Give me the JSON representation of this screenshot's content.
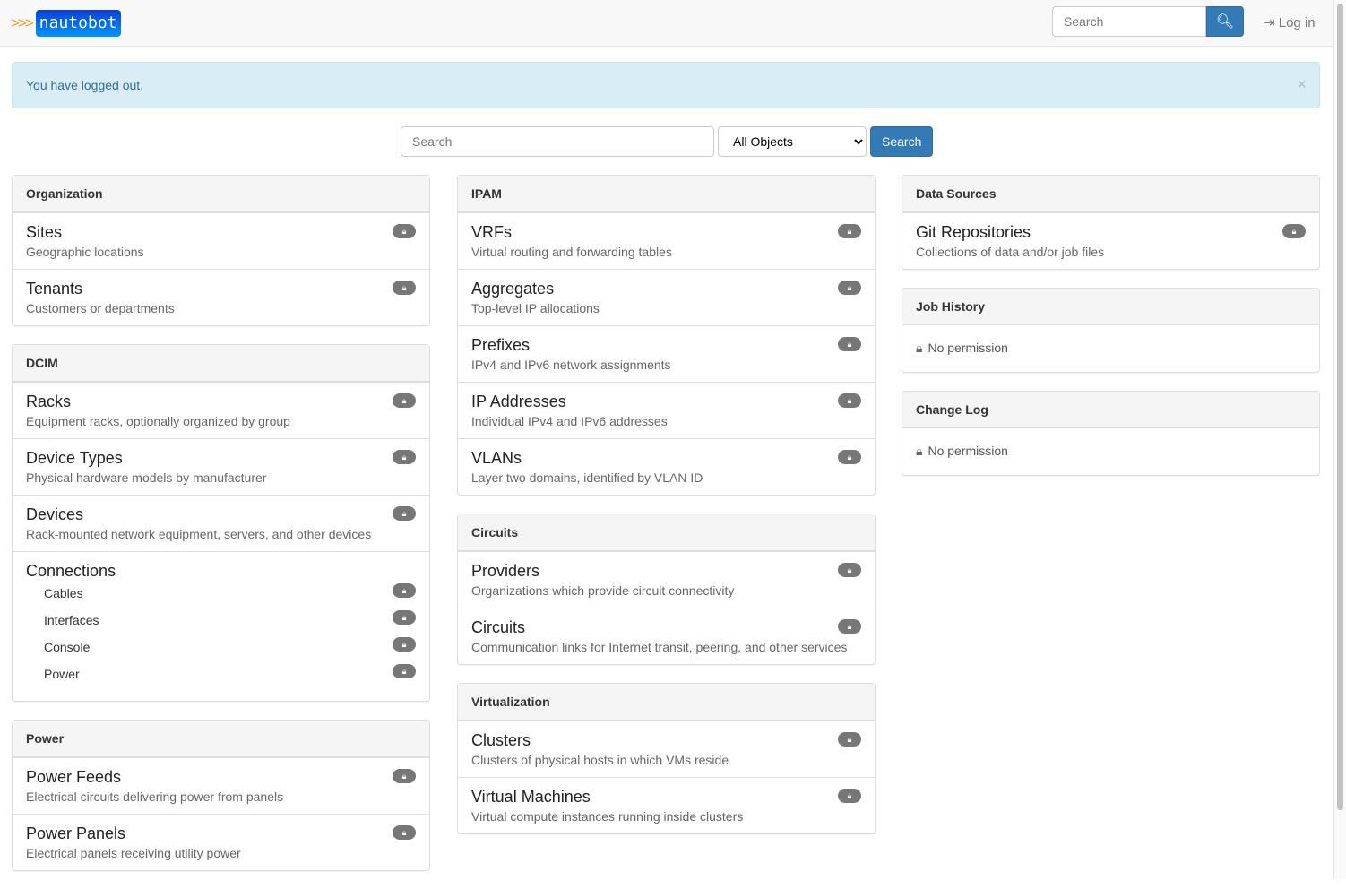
{
  "navbar": {
    "brand": "nautobot",
    "brand_chevrons": ">>>",
    "search_placeholder": "Search",
    "login_label": "Log in"
  },
  "alert": {
    "message": "You have logged out.",
    "close": "×"
  },
  "search": {
    "placeholder": "Search",
    "selected": "All Objects",
    "button": "Search"
  },
  "columns": [
    [
      {
        "title": "Organization",
        "items": [
          {
            "title": "Sites",
            "desc": "Geographic locations",
            "locked": true
          },
          {
            "title": "Tenants",
            "desc": "Customers or departments",
            "locked": true
          }
        ]
      },
      {
        "title": "DCIM",
        "items": [
          {
            "title": "Racks",
            "desc": "Equipment racks, optionally organized by group",
            "locked": true
          },
          {
            "title": "Device Types",
            "desc": "Physical hardware models by manufacturer",
            "locked": true
          },
          {
            "title": "Devices",
            "desc": "Rack-mounted network equipment, servers, and other devices",
            "locked": true
          },
          {
            "title": "Connections",
            "subitems": [
              {
                "label": "Cables",
                "locked": true
              },
              {
                "label": "Interfaces",
                "locked": true
              },
              {
                "label": "Console",
                "locked": true
              },
              {
                "label": "Power",
                "locked": true
              }
            ]
          }
        ]
      },
      {
        "title": "Power",
        "items": [
          {
            "title": "Power Feeds",
            "desc": "Electrical circuits delivering power from panels",
            "locked": true
          },
          {
            "title": "Power Panels",
            "desc": "Electrical panels receiving utility power",
            "locked": true
          }
        ]
      }
    ],
    [
      {
        "title": "IPAM",
        "items": [
          {
            "title": "VRFs",
            "desc": "Virtual routing and forwarding tables",
            "locked": true
          },
          {
            "title": "Aggregates",
            "desc": "Top-level IP allocations",
            "locked": true
          },
          {
            "title": "Prefixes",
            "desc": "IPv4 and IPv6 network assignments",
            "locked": true
          },
          {
            "title": "IP Addresses",
            "desc": "Individual IPv4 and IPv6 addresses",
            "locked": true
          },
          {
            "title": "VLANs",
            "desc": "Layer two domains, identified by VLAN ID",
            "locked": true
          }
        ]
      },
      {
        "title": "Circuits",
        "items": [
          {
            "title": "Providers",
            "desc": "Organizations which provide circuit connectivity",
            "locked": true
          },
          {
            "title": "Circuits",
            "desc": "Communication links for Internet transit, peering, and other services",
            "locked": true
          }
        ]
      },
      {
        "title": "Virtualization",
        "items": [
          {
            "title": "Clusters",
            "desc": "Clusters of physical hosts in which VMs reside",
            "locked": true
          },
          {
            "title": "Virtual Machines",
            "desc": "Virtual compute instances running inside clusters",
            "locked": true
          }
        ]
      }
    ],
    [
      {
        "title": "Data Sources",
        "items": [
          {
            "title": "Git Repositories",
            "desc": "Collections of data and/or job files",
            "locked": true
          }
        ]
      },
      {
        "title": "Job History",
        "no_permission": "No permission"
      },
      {
        "title": "Change Log",
        "no_permission": "No permission"
      }
    ]
  ]
}
